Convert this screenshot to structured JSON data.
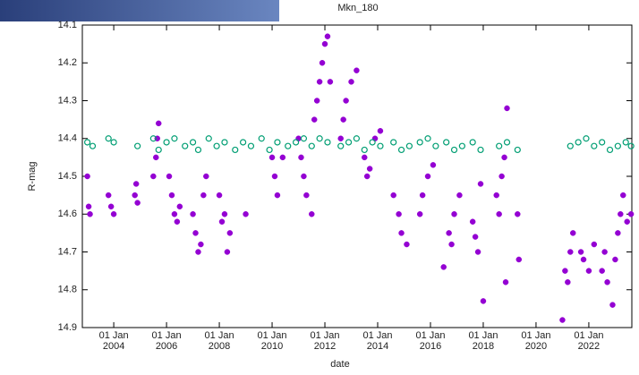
{
  "chart_data": {
    "type": "scatter",
    "title": "Mkn_180",
    "xlabel": "date",
    "ylabel": "R-mag",
    "xlim": [
      2002.81,
      2023.63
    ],
    "ylim": [
      14.1,
      14.9
    ],
    "y_inverted": true,
    "xticks": [
      {
        "value": 2004,
        "label": "01 Jan 2004"
      },
      {
        "value": 2006,
        "label": "01 Jan 2006"
      },
      {
        "value": 2008,
        "label": "01 Jan 2008"
      },
      {
        "value": 2010,
        "label": "01 Jan 2010"
      },
      {
        "value": 2012,
        "label": "01 Jan 2012"
      },
      {
        "value": 2014,
        "label": "01 Jan 2014"
      },
      {
        "value": 2016,
        "label": "01 Jan 2016"
      },
      {
        "value": 2018,
        "label": "01 Jan 2018"
      },
      {
        "value": 2020,
        "label": "01 Jan 2020"
      },
      {
        "value": 2022,
        "label": "01 Jan 2022"
      }
    ],
    "yticks": [
      14.1,
      14.2,
      14.3,
      14.4,
      14.5,
      14.6,
      14.7,
      14.8,
      14.9
    ],
    "series": [
      {
        "color": "#9400d3",
        "marker": "filled",
        "x": [
          2003.0,
          2003.05,
          2003.1,
          2003.8,
          2003.9,
          2004.0,
          2004.8,
          2004.85,
          2004.9,
          2005.5,
          2005.6,
          2005.65,
          2005.7,
          2006.1,
          2006.2,
          2006.3,
          2006.4,
          2006.5,
          2007.0,
          2007.1,
          2007.2,
          2007.3,
          2007.4,
          2007.5,
          2008.0,
          2008.1,
          2008.2,
          2008.3,
          2008.4,
          2009.0,
          2010.0,
          2010.1,
          2010.2,
          2010.4,
          2011.0,
          2011.1,
          2011.2,
          2011.3,
          2011.5,
          2011.6,
          2011.7,
          2011.8,
          2011.9,
          2012.0,
          2012.1,
          2012.2,
          2012.6,
          2012.7,
          2012.8,
          2013.0,
          2013.2,
          2013.5,
          2013.6,
          2013.7,
          2013.9,
          2014.1,
          2014.6,
          2014.8,
          2014.9,
          2015.1,
          2015.6,
          2015.7,
          2015.9,
          2016.1,
          2016.5,
          2016.7,
          2016.8,
          2016.9,
          2017.1,
          2017.6,
          2017.7,
          2017.8,
          2017.9,
          2018.0,
          2018.5,
          2018.6,
          2018.7,
          2018.8,
          2018.85,
          2018.9,
          2019.3,
          2019.35,
          2021.0,
          2021.1,
          2021.2,
          2021.3,
          2021.4,
          2021.7,
          2021.8,
          2022.0,
          2022.2,
          2022.5,
          2022.6,
          2022.7,
          2022.9,
          2023.0,
          2023.1,
          2023.2,
          2023.3,
          2023.45,
          2023.6
        ],
        "values": [
          14.5,
          14.58,
          14.6,
          14.55,
          14.58,
          14.6,
          14.55,
          14.52,
          14.57,
          14.5,
          14.45,
          14.4,
          14.36,
          14.5,
          14.55,
          14.6,
          14.62,
          14.58,
          14.6,
          14.65,
          14.7,
          14.68,
          14.55,
          14.5,
          14.55,
          14.62,
          14.6,
          14.7,
          14.65,
          14.6,
          14.45,
          14.5,
          14.55,
          14.45,
          14.4,
          14.45,
          14.5,
          14.55,
          14.6,
          14.35,
          14.3,
          14.25,
          14.2,
          14.15,
          14.13,
          14.25,
          14.4,
          14.35,
          14.3,
          14.25,
          14.22,
          14.45,
          14.5,
          14.48,
          14.4,
          14.38,
          14.55,
          14.6,
          14.65,
          14.68,
          14.6,
          14.55,
          14.5,
          14.47,
          14.74,
          14.65,
          14.68,
          14.6,
          14.55,
          14.62,
          14.66,
          14.7,
          14.52,
          14.83,
          14.55,
          14.6,
          14.5,
          14.45,
          14.78,
          14.32,
          14.6,
          14.72,
          14.88,
          14.75,
          14.78,
          14.7,
          14.65,
          14.7,
          14.72,
          14.75,
          14.68,
          14.75,
          14.7,
          14.78,
          14.84,
          14.72,
          14.65,
          14.6,
          14.55,
          14.62,
          14.6
        ]
      },
      {
        "color": "#009e73",
        "marker": "open",
        "x": [
          2003.0,
          2003.2,
          2003.8,
          2004.0,
          2004.9,
          2005.5,
          2005.7,
          2006.0,
          2006.3,
          2006.7,
          2007.0,
          2007.2,
          2007.6,
          2007.9,
          2008.2,
          2008.6,
          2008.9,
          2009.2,
          2009.6,
          2009.9,
          2010.2,
          2010.6,
          2010.9,
          2011.2,
          2011.5,
          2011.8,
          2012.1,
          2012.6,
          2012.9,
          2013.2,
          2013.5,
          2013.8,
          2014.1,
          2014.6,
          2014.9,
          2015.2,
          2015.6,
          2015.9,
          2016.2,
          2016.6,
          2016.9,
          2017.2,
          2017.6,
          2017.9,
          2018.6,
          2018.9,
          2019.3,
          2021.3,
          2021.6,
          2021.9,
          2022.2,
          2022.5,
          2022.8,
          2023.1,
          2023.4,
          2023.6
        ],
        "values": [
          14.41,
          14.42,
          14.4,
          14.41,
          14.42,
          14.4,
          14.43,
          14.41,
          14.4,
          14.42,
          14.41,
          14.43,
          14.4,
          14.42,
          14.41,
          14.43,
          14.41,
          14.42,
          14.4,
          14.43,
          14.41,
          14.42,
          14.41,
          14.4,
          14.42,
          14.4,
          14.41,
          14.42,
          14.41,
          14.4,
          14.43,
          14.41,
          14.42,
          14.41,
          14.43,
          14.42,
          14.41,
          14.4,
          14.42,
          14.41,
          14.43,
          14.42,
          14.41,
          14.43,
          14.42,
          14.41,
          14.43,
          14.42,
          14.41,
          14.4,
          14.42,
          14.41,
          14.43,
          14.42,
          14.41,
          14.42
        ]
      }
    ]
  }
}
